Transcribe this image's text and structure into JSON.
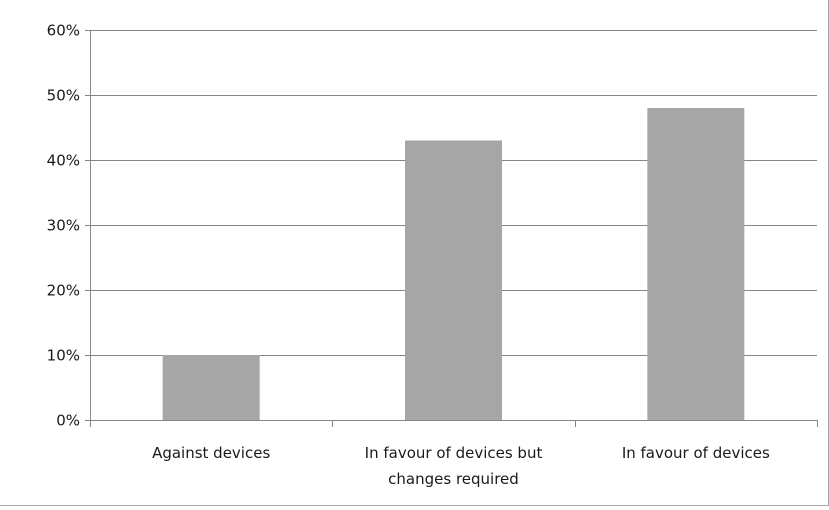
{
  "chart_data": {
    "type": "bar",
    "categories": [
      [
        "Against devices"
      ],
      [
        "In favour of devices but",
        "changes required"
      ],
      [
        "In favour of devices"
      ]
    ],
    "values": [
      0.1,
      0.43,
      0.48
    ],
    "ylim": [
      0,
      0.6
    ],
    "yticks": [
      {
        "value": 0.0,
        "label": "0%"
      },
      {
        "value": 0.1,
        "label": "10%"
      },
      {
        "value": 0.2,
        "label": "20%"
      },
      {
        "value": 0.3,
        "label": "30%"
      },
      {
        "value": 0.4,
        "label": "40%"
      },
      {
        "value": 0.5,
        "label": "50%"
      },
      {
        "value": 0.6,
        "label": "60%"
      }
    ],
    "title": "",
    "xlabel": "",
    "ylabel": "",
    "grid": true,
    "legend": "none",
    "colors": {
      "bar": "#a6a6a6",
      "gridline": "#868686",
      "axis": "#868686",
      "text": "#1a1a1a"
    }
  }
}
